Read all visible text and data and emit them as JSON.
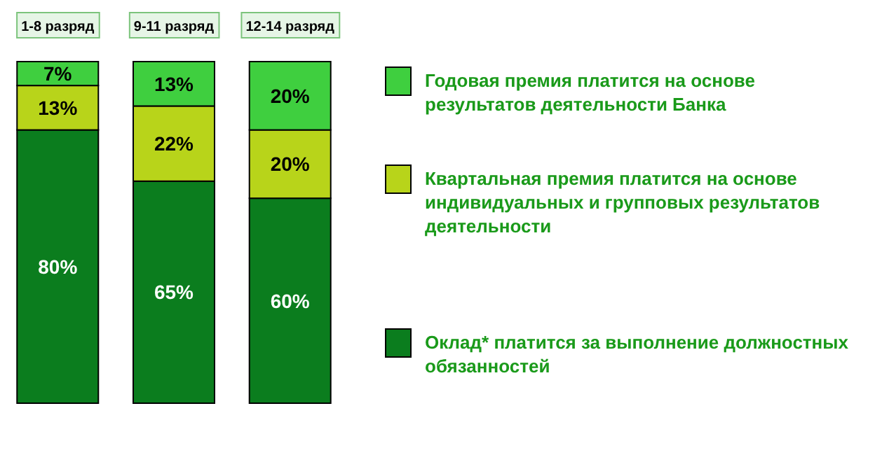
{
  "chart_data": {
    "type": "bar",
    "stacked": true,
    "legend": "right",
    "categories": [
      "1-8 разряд",
      "9-11 разряд",
      "12-14 разряд"
    ],
    "series": [
      {
        "name": "Оклад* платится за выполнение должностных обязанностей",
        "color": "#0b7d1e",
        "values": [
          80,
          65,
          60
        ],
        "value_labels": [
          "80%",
          "65%",
          "60%"
        ]
      },
      {
        "name": "Квартальная премия платится на основе индивидуальных и групповых результатов деятельности",
        "color": "#b8d41a",
        "values": [
          13,
          22,
          20
        ],
        "value_labels": [
          "13%",
          "22%",
          "20%"
        ]
      },
      {
        "name": "Годовая премия платится на основе результатов деятельности Банка",
        "color": "#3fcf3f",
        "values": [
          7,
          13,
          20
        ],
        "value_labels": [
          "7%",
          "13%",
          "20%"
        ]
      }
    ]
  }
}
